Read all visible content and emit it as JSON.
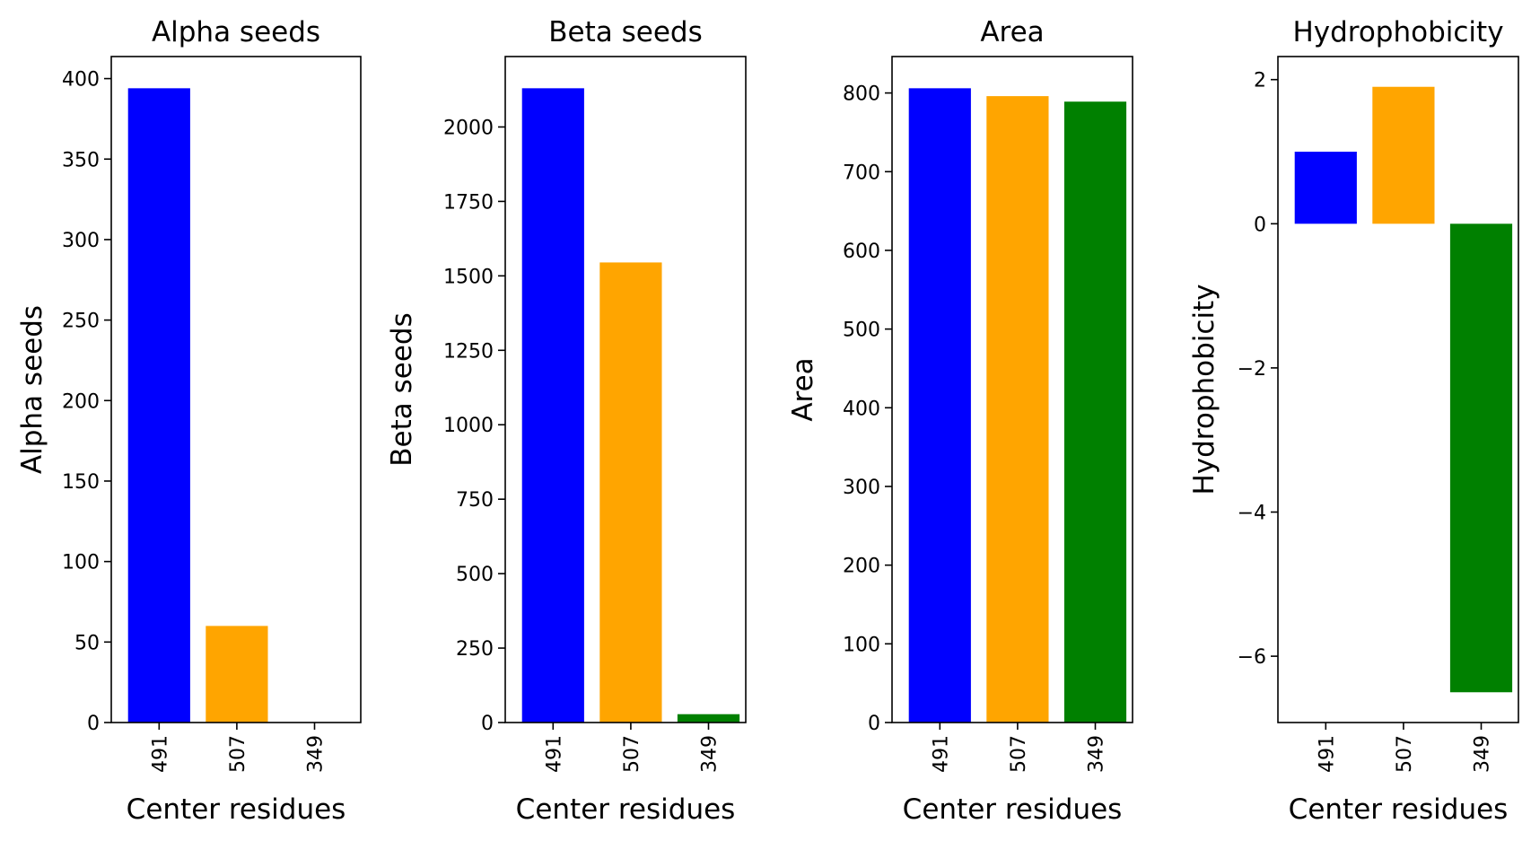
{
  "chart_data": [
    {
      "type": "bar",
      "title": "Alpha seeds",
      "xlabel": "Center residues",
      "ylabel": "Alpha seeds",
      "categories": [
        "491",
        "507",
        "349"
      ],
      "values": [
        394,
        60,
        0
      ],
      "colors": [
        "#0000ff",
        "#ffa500",
        "#008000"
      ],
      "ylim": [
        0,
        413.7
      ],
      "yticks": [
        0,
        50,
        100,
        150,
        200,
        250,
        300,
        350,
        400
      ],
      "ytick_labels": [
        "0",
        "50",
        "100",
        "150",
        "200",
        "250",
        "300",
        "350",
        "400"
      ],
      "grid": false
    },
    {
      "type": "bar",
      "title": "Beta seeds",
      "xlabel": "Center residues",
      "ylabel": "Beta seeds",
      "categories": [
        "491",
        "507",
        "349"
      ],
      "values": [
        2130,
        1545,
        28
      ],
      "colors": [
        "#0000ff",
        "#ffa500",
        "#008000"
      ],
      "ylim": [
        0,
        2236.5
      ],
      "yticks": [
        0,
        250,
        500,
        750,
        1000,
        1250,
        1500,
        1750,
        2000
      ],
      "ytick_labels": [
        "0",
        "250",
        "500",
        "750",
        "1000",
        "1250",
        "1500",
        "1750",
        "2000"
      ],
      "grid": false
    },
    {
      "type": "bar",
      "title": "Area",
      "xlabel": "Center residues",
      "ylabel": "Area",
      "categories": [
        "491",
        "507",
        "349"
      ],
      "values": [
        806,
        796,
        789
      ],
      "colors": [
        "#0000ff",
        "#ffa500",
        "#008000"
      ],
      "ylim": [
        0,
        846.3
      ],
      "yticks": [
        0,
        100,
        200,
        300,
        400,
        500,
        600,
        700,
        800
      ],
      "ytick_labels": [
        "0",
        "100",
        "200",
        "300",
        "400",
        "500",
        "600",
        "700",
        "800"
      ],
      "grid": false
    },
    {
      "type": "bar",
      "title": "Hydrophobicity",
      "xlabel": "Center residues",
      "ylabel": "Hydrophobicity",
      "categories": [
        "491",
        "507",
        "349"
      ],
      "values": [
        1.0,
        1.9,
        -6.5
      ],
      "colors": [
        "#0000ff",
        "#ffa500",
        "#008000"
      ],
      "ylim": [
        -6.92,
        2.32
      ],
      "yticks": [
        -6,
        -4,
        -2,
        0,
        2
      ],
      "ytick_labels": [
        "−6",
        "−4",
        "−2",
        "0",
        "2"
      ],
      "grid": false
    }
  ]
}
